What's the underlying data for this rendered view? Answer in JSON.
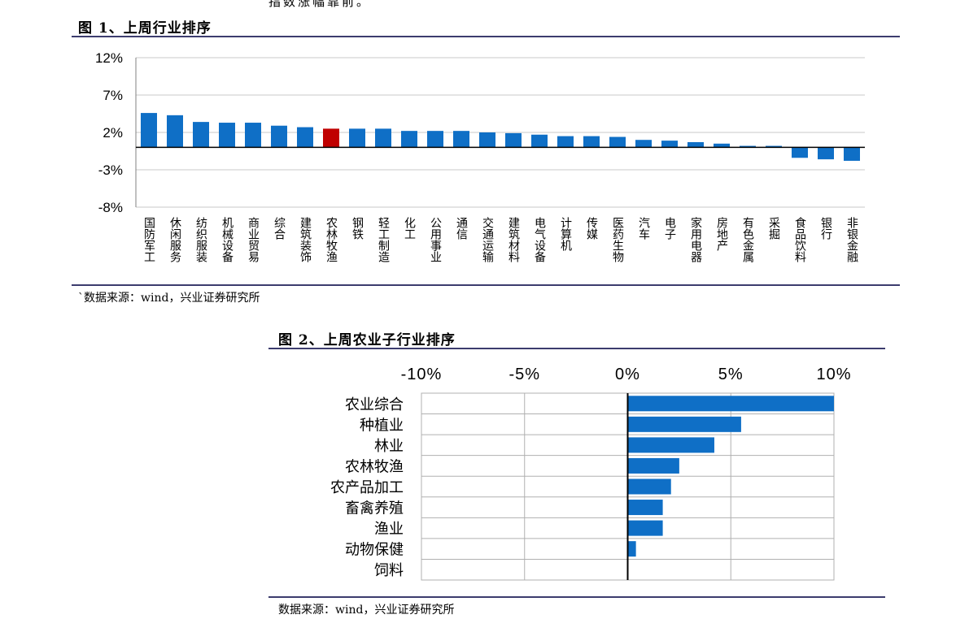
{
  "top_snippet": "指数涨幅靠前。",
  "figure1": {
    "title": "图 1、上周行业排序",
    "source": "`数据来源：wind，兴业证券研究所",
    "chart_data": {
      "type": "bar",
      "title": "",
      "xlabel": "",
      "ylabel": "",
      "ylim": [
        -8,
        12
      ],
      "yticks": [
        "12%",
        "7%",
        "2%",
        "-3%",
        "-8%"
      ],
      "ytick_values": [
        12,
        7,
        2,
        -3,
        -8
      ],
      "grid": true,
      "categories": [
        "国防军工",
        "休闲服务",
        "纺织服装",
        "机械设备",
        "商业贸易",
        "综合",
        "建筑装饰",
        "农林牧渔",
        "钢铁",
        "轻工制造",
        "化工",
        "公用事业",
        "通信",
        "交通运输",
        "建筑材料",
        "电气设备",
        "计算机",
        "传媒",
        "医药生物",
        "汽车",
        "电子",
        "家用电器",
        "房地产",
        "有色金属",
        "采掘",
        "食品饮料",
        "银行",
        "非银金融"
      ],
      "values": [
        4.6,
        4.3,
        3.4,
        3.3,
        3.3,
        2.9,
        2.7,
        2.5,
        2.5,
        2.5,
        2.2,
        2.2,
        2.2,
        2.0,
        1.9,
        1.7,
        1.5,
        1.5,
        1.4,
        1.0,
        0.9,
        0.7,
        0.5,
        0.2,
        0.2,
        -1.4,
        -1.6,
        -1.8
      ],
      "colors": {
        "bar": "#0f6fc6",
        "highlight": "#c00000"
      },
      "highlight_category": "农林牧渔"
    }
  },
  "figure2": {
    "title": "图 2、上周农业子行业排序",
    "source": "数据来源：wind，兴业证券研究所",
    "chart_data": {
      "type": "bar",
      "orientation": "horizontal",
      "title": "",
      "xlabel": "",
      "ylabel": "",
      "xlim": [
        -10,
        10
      ],
      "xticks": [
        "-10%",
        "-5%",
        "0%",
        "5%",
        "10%"
      ],
      "xtick_values": [
        -10,
        -5,
        0,
        5,
        10
      ],
      "grid": true,
      "categories": [
        "农业综合",
        "种植业",
        "林业",
        "农林牧渔",
        "农产品加工",
        "畜禽养殖",
        "渔业",
        "动物保健",
        "饲料"
      ],
      "values": [
        10.0,
        5.5,
        4.2,
        2.5,
        2.1,
        1.7,
        1.7,
        0.4,
        0.0
      ],
      "colors": {
        "bar": "#0f6fc6"
      }
    }
  }
}
